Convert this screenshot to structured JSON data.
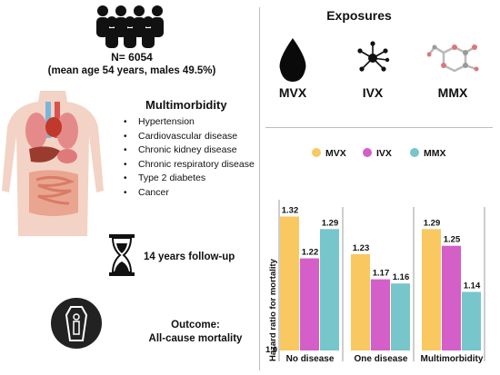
{
  "left": {
    "n_label": "N= 6054",
    "demographics": "(mean age 54 years, males 49.5%)",
    "multimorbidity_title": "Multimorbidity",
    "conditions": [
      "Hypertension",
      "Cardiovascular disease",
      "Chronic kidney disease",
      "Chronic respiratory disease",
      "Type 2 diabetes",
      "Cancer"
    ],
    "followup": "14 years follow-up",
    "outcome_label": "Outcome:",
    "outcome_value": "All-cause mortality",
    "icons": [
      "people-group-icon",
      "human-organs-icon",
      "hourglass-icon",
      "coffin-icon"
    ]
  },
  "exposures": {
    "title": "Exposures",
    "items": [
      {
        "label": "MVX",
        "icon": "droplet-icon"
      },
      {
        "label": "IVX",
        "icon": "molecule-network-icon"
      },
      {
        "label": "MMX",
        "icon": "molecule-structure-icon"
      }
    ]
  },
  "chart_data": {
    "type": "bar",
    "ylabel": "Hazard ratio for mortality",
    "ybase_label": "1.0",
    "ylim": [
      1.0,
      1.36
    ],
    "categories": [
      "No disease",
      "One disease",
      "Multimorbidity"
    ],
    "series": [
      {
        "name": "MVX",
        "color": "#f9c861",
        "values": [
          1.32,
          1.23,
          1.29
        ],
        "labels": [
          "1.32",
          "1.23",
          "1.29"
        ]
      },
      {
        "name": "IVX",
        "color": "#d45fc8",
        "values": [
          1.22,
          1.17,
          1.25
        ],
        "labels": [
          "1.22",
          "1.17",
          "1.25"
        ]
      },
      {
        "name": "MMX",
        "color": "#77c6cb",
        "values": [
          1.29,
          1.16,
          1.14
        ],
        "labels": [
          "1.29",
          "1.16",
          "1.14"
        ]
      }
    ],
    "legend_position": "top",
    "grid": false
  }
}
